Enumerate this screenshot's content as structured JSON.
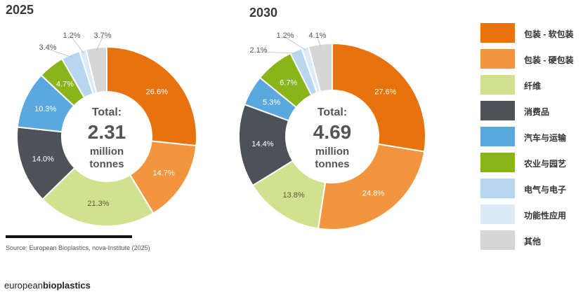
{
  "legend": [
    {
      "label": "包装 - 软包装",
      "color": "#E8730E"
    },
    {
      "label": "包装 - 硬包装",
      "color": "#F3953F"
    },
    {
      "label": "纤维",
      "color": "#D2E18F"
    },
    {
      "label": "消费品",
      "color": "#4C5257"
    },
    {
      "label": "汽车与运输",
      "color": "#5AA8DF"
    },
    {
      "label": "农业与园艺",
      "color": "#8AB51A"
    },
    {
      "label": "电气与电子",
      "color": "#B7D7EF"
    },
    {
      "label": "功能性应用",
      "color": "#DCEAF5"
    },
    {
      "label": "其他",
      "color": "#D6D6D6"
    }
  ],
  "chart_data": [
    {
      "type": "pie",
      "title": "2025",
      "center": {
        "line1": "Total:",
        "value": "2.31",
        "line3": "million",
        "line4": "tonnes"
      },
      "categories": [
        "包装 - 软包装",
        "包装 - 硬包装",
        "纤维",
        "消费品",
        "汽车与运输",
        "农业与园艺",
        "电气与电子",
        "功能性应用",
        "其他"
      ],
      "values": [
        26.6,
        14.7,
        21.3,
        14.0,
        10.3,
        4.7,
        3.4,
        1.2,
        3.7
      ],
      "labels": [
        "26.6%",
        "14.7%",
        "21.3%",
        "14.0%",
        "10.3%",
        "4.7%",
        "3.4%",
        "1.2%",
        "3.7%"
      ]
    },
    {
      "type": "pie",
      "title": "2030",
      "center": {
        "line1": "Total:",
        "value": "4.69",
        "line3": "million",
        "line4": "tonnes"
      },
      "categories": [
        "包装 - 软包装",
        "包装 - 硬包装",
        "纤维",
        "消费品",
        "汽车与运输",
        "农业与园艺",
        "电气与电子",
        "功能性应用",
        "其他"
      ],
      "values": [
        27.6,
        24.8,
        13.8,
        14.4,
        5.3,
        6.7,
        2.1,
        1.2,
        4.1
      ],
      "labels": [
        "27.6%",
        "24.8%",
        "13.8%",
        "14.4%",
        "5.3%",
        "6.7%",
        "2.1%",
        "1.2%",
        "4.1%"
      ]
    }
  ],
  "source": "Source: European Bioplastics, nova-Institute (2025)",
  "brand": {
    "light": "european",
    "bold": "bioplastics"
  }
}
